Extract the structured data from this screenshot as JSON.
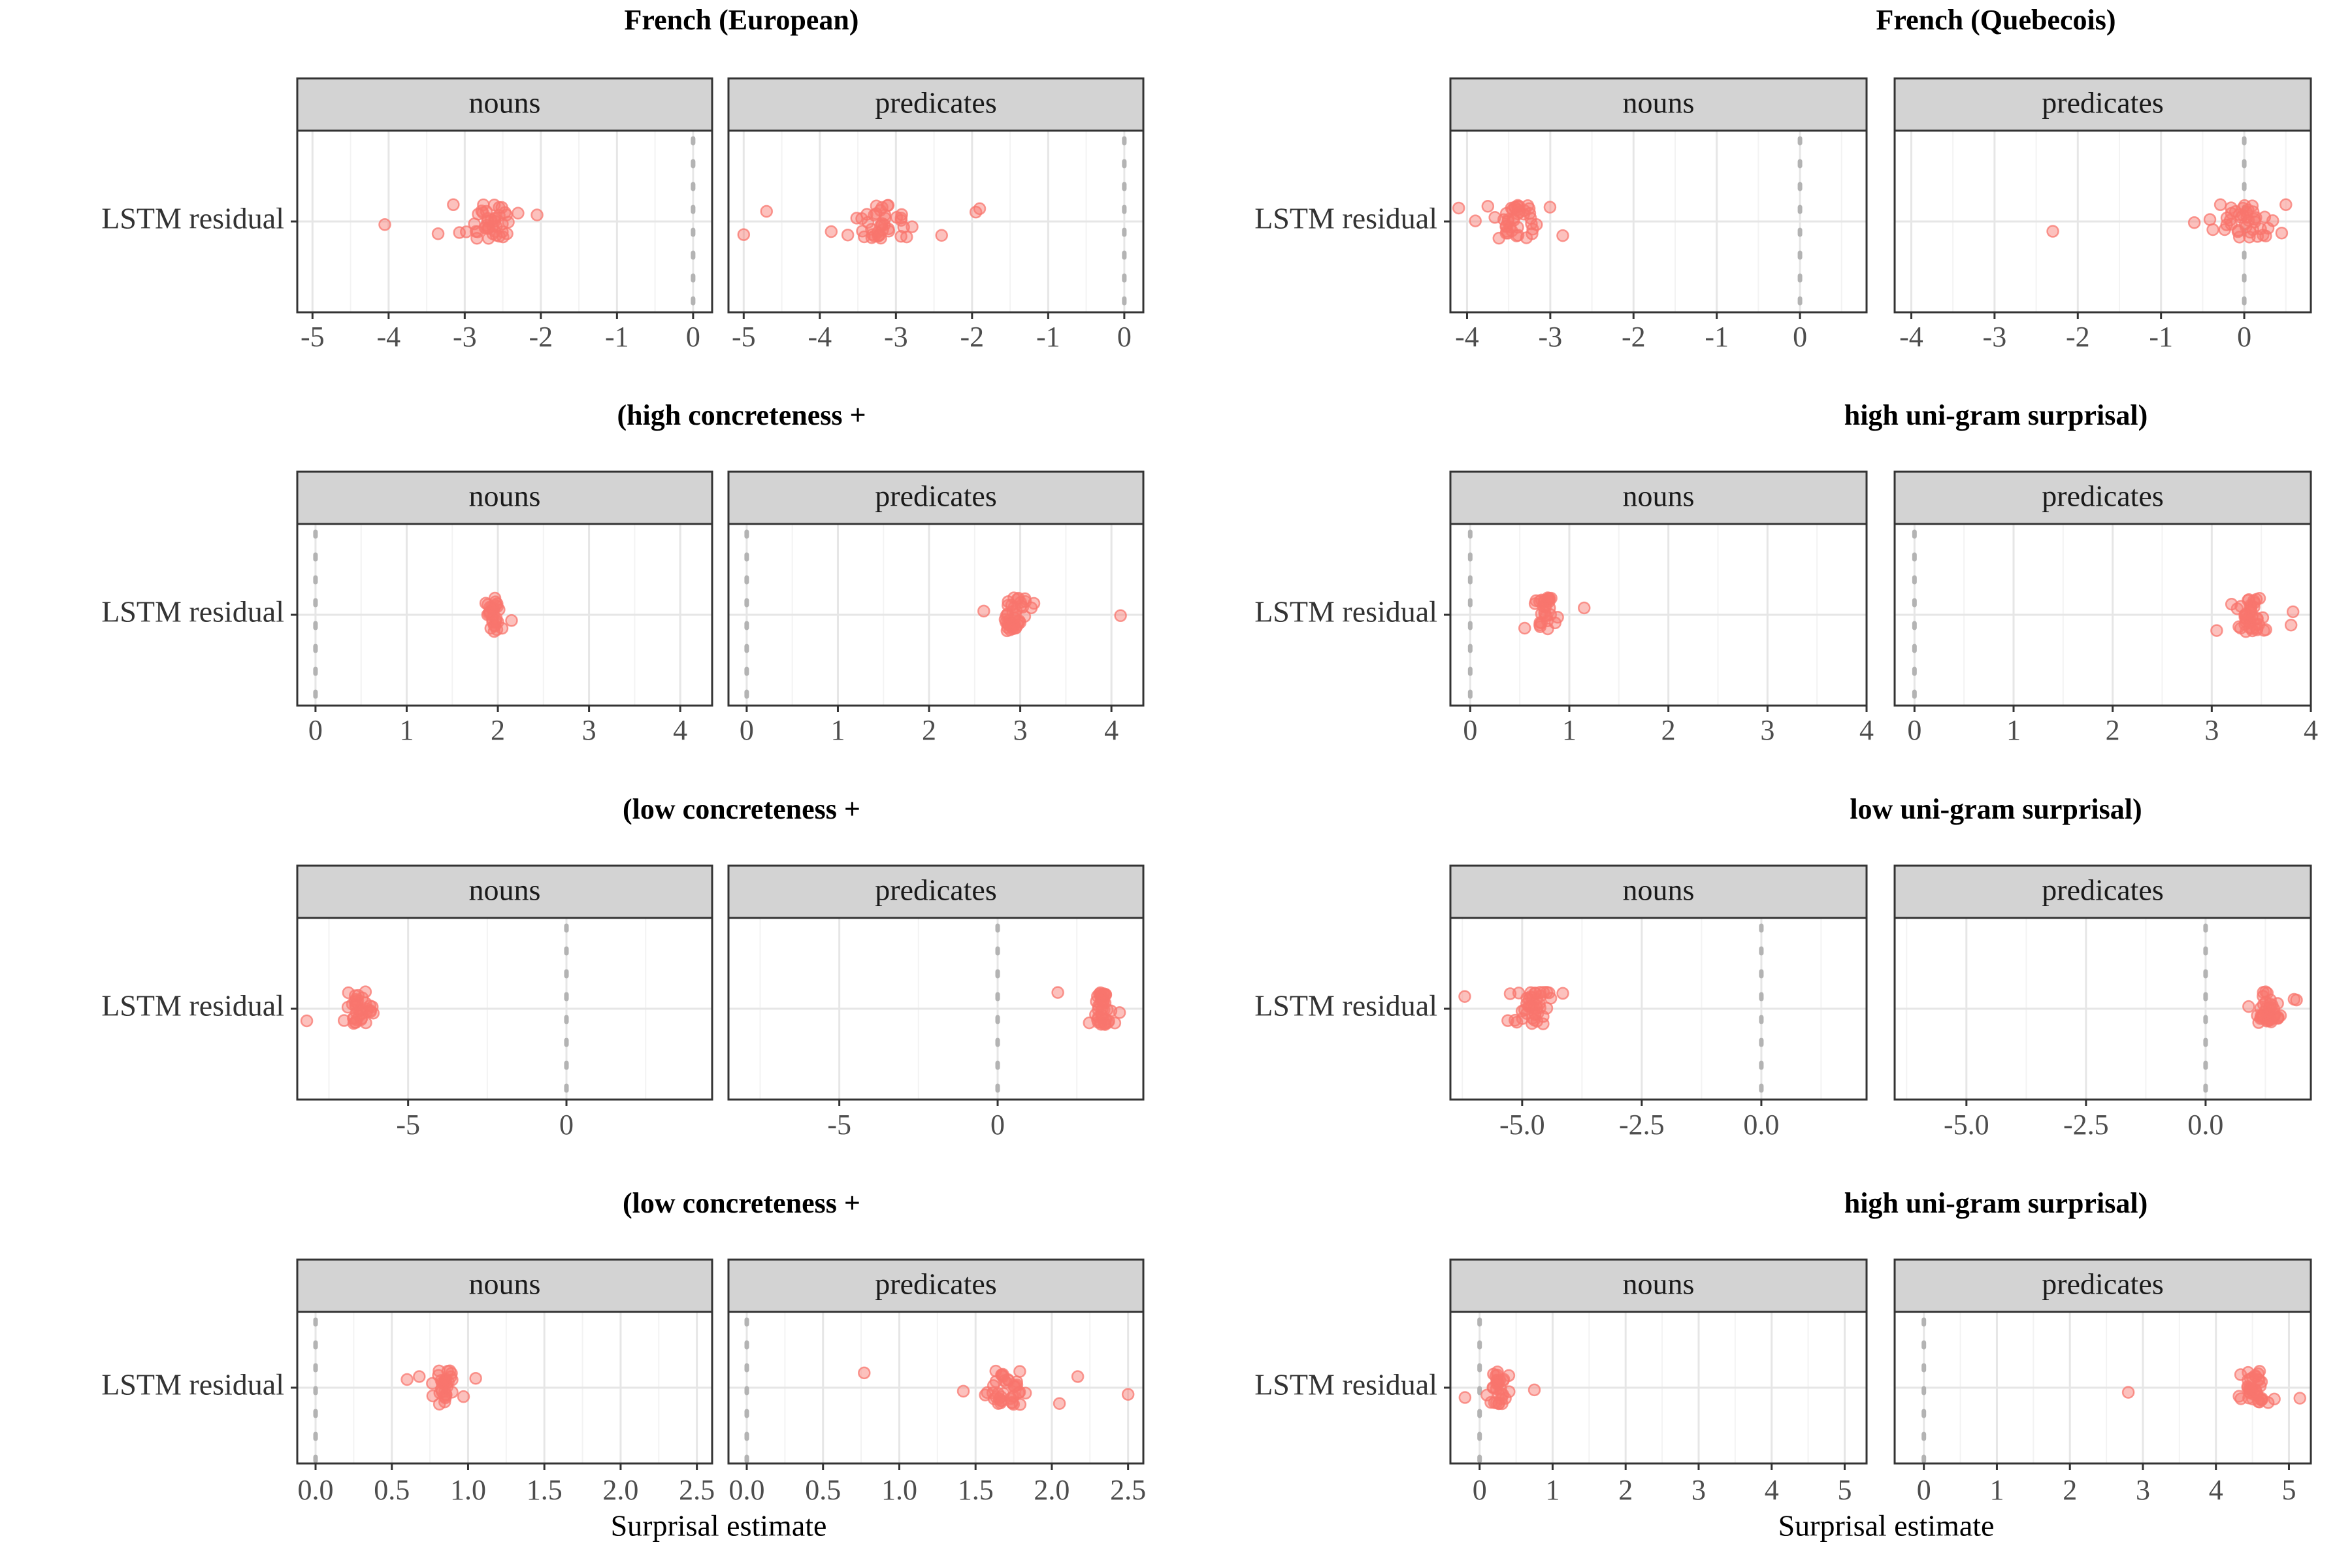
{
  "colors": {
    "point": "#F8766D",
    "strip_bg": "#D3D3D3",
    "grid_major": "#E6E6E6",
    "grid_minor": "#F3F3F3",
    "panel_border": "#333333",
    "ref_line": "#B3B3B3"
  },
  "chart_data": [
    {
      "type": "scatter",
      "title": "French (European)",
      "facets": [
        "nouns",
        "predicates"
      ],
      "y_category": "LSTM residual",
      "xlabel": "",
      "xlim": [
        -5.2,
        0.25
      ],
      "xticks": [
        -5,
        -4,
        -3,
        -2,
        -1,
        0
      ],
      "xtick_labels": [
        "-5",
        "-4",
        "-3",
        "-2",
        "-1",
        "0"
      ],
      "reference_line": 0,
      "series": [
        {
          "facet": "nouns",
          "center": -2.65,
          "spread": 0.16,
          "n": 40,
          "outliers": [
            -4.05,
            -3.35,
            -2.05,
            -3.15,
            -2.3
          ]
        },
        {
          "facet": "predicates",
          "center": -3.15,
          "spread": 0.2,
          "n": 40,
          "outliers": [
            -5.0,
            -4.7,
            -1.9,
            -1.95,
            -2.4,
            -3.85
          ]
        }
      ]
    },
    {
      "type": "scatter",
      "title": "French (Quebecois)",
      "facets": [
        "nouns",
        "predicates"
      ],
      "y_category": "LSTM residual",
      "xlabel": "",
      "xlim": [
        -4.2,
        0.8
      ],
      "xticks": [
        -4,
        -3,
        -2,
        -1,
        0
      ],
      "xtick_labels": [
        "-4",
        "-3",
        "-2",
        "-1",
        "0"
      ],
      "reference_line": 0,
      "series": [
        {
          "facet": "nouns",
          "center": -3.4,
          "spread": 0.15,
          "n": 40,
          "outliers": [
            -4.1,
            -3.9,
            -2.85,
            -3.75
          ]
        },
        {
          "facet": "predicates",
          "center": 0.0,
          "spread": 0.17,
          "n": 40,
          "outliers": [
            -2.3,
            -0.6,
            0.5,
            0.45
          ]
        }
      ]
    },
    {
      "type": "scatter",
      "title": "(high concreteness +",
      "facets": [
        "nouns",
        "predicates"
      ],
      "y_category": "LSTM residual",
      "xlabel": "",
      "xlim": [
        -0.2,
        4.35
      ],
      "xticks": [
        0,
        1,
        2,
        3,
        4
      ],
      "xtick_labels": [
        "0",
        "1",
        "2",
        "3",
        "4"
      ],
      "reference_line": 0,
      "series": [
        {
          "facet": "nouns",
          "center": 1.96,
          "spread": 0.04,
          "n": 30,
          "outliers": [
            2.15,
            1.9
          ]
        },
        {
          "facet": "predicates",
          "center": 2.92,
          "spread": 0.07,
          "n": 40,
          "outliers": [
            4.1,
            2.6,
            3.15
          ]
        }
      ]
    },
    {
      "type": "scatter",
      "title": "high uni-gram surprisal)",
      "facets": [
        "nouns",
        "predicates"
      ],
      "y_category": "LSTM residual",
      "xlabel": "",
      "xlim": [
        -0.2,
        4.0
      ],
      "xticks": [
        0,
        1,
        2,
        3,
        4
      ],
      "xtick_labels": [
        "0",
        "1",
        "2",
        "3",
        "4"
      ],
      "reference_line": 0,
      "series": [
        {
          "facet": "nouns",
          "center": 0.77,
          "spread": 0.05,
          "n": 30,
          "outliers": [
            1.15,
            0.55
          ]
        },
        {
          "facet": "predicates",
          "center": 3.4,
          "spread": 0.07,
          "n": 40,
          "outliers": [
            3.05,
            3.8,
            3.82,
            3.2
          ]
        }
      ]
    },
    {
      "type": "scatter",
      "title": "(low concreteness +",
      "facets": [
        "nouns",
        "predicates"
      ],
      "y_category": "LSTM residual",
      "xlabel": "",
      "xlim": [
        -8.5,
        4.6
      ],
      "xticks": [
        -5,
        0
      ],
      "xtick_labels": [
        "-5",
        "0"
      ],
      "reference_line": 0,
      "series": [
        {
          "facet": "nouns",
          "center": -6.5,
          "spread": 0.18,
          "n": 35,
          "outliers": [
            -8.2,
            -6.9,
            -6.1
          ]
        },
        {
          "facet": "predicates",
          "center": 3.3,
          "spread": 0.12,
          "n": 40,
          "outliers": [
            1.9,
            3.85,
            3.7
          ]
        }
      ]
    },
    {
      "type": "scatter",
      "title": "low uni-gram surprisal)",
      "facets": [
        "nouns",
        "predicates"
      ],
      "y_category": "LSTM residual",
      "xlabel": "",
      "xlim": [
        -6.5,
        2.2
      ],
      "xticks": [
        -5,
        -2.5,
        0
      ],
      "xtick_labels": [
        "-5.0",
        "-2.5",
        "0.0"
      ],
      "reference_line": 0,
      "series": [
        {
          "facet": "nouns",
          "center": -4.75,
          "spread": 0.15,
          "n": 40,
          "outliers": [
            -6.2,
            -5.3,
            -4.15,
            -5.15
          ]
        },
        {
          "facet": "predicates",
          "center": 1.3,
          "spread": 0.12,
          "n": 40,
          "outliers": [
            0.9,
            1.9,
            1.85
          ]
        }
      ]
    },
    {
      "type": "scatter",
      "title": "(low concreteness +",
      "facets": [
        "nouns",
        "predicates"
      ],
      "y_category": "LSTM residual",
      "xlabel": "Surprisal estimate",
      "xlim": [
        -0.12,
        2.6
      ],
      "xticks": [
        0,
        0.5,
        1,
        1.5,
        2,
        2.5
      ],
      "xtick_labels": [
        "0.0",
        "0.5",
        "1.0",
        "1.5",
        "2.0",
        "2.5"
      ],
      "reference_line": 0,
      "series": [
        {
          "facet": "nouns",
          "center": 0.85,
          "spread": 0.04,
          "n": 30,
          "outliers": [
            0.6,
            1.05,
            0.68,
            0.97
          ]
        },
        {
          "facet": "predicates",
          "center": 1.68,
          "spread": 0.07,
          "n": 40,
          "outliers": [
            0.77,
            2.5,
            2.17,
            1.42,
            2.05
          ]
        }
      ]
    },
    {
      "type": "scatter",
      "title": "high uni-gram surprisal)",
      "facets": [
        "nouns",
        "predicates"
      ],
      "y_category": "LSTM residual",
      "xlabel": "Surprisal estimate",
      "xlim": [
        -0.4,
        5.3
      ],
      "xticks": [
        0,
        1,
        2,
        3,
        4,
        5
      ],
      "xtick_labels": [
        "0",
        "1",
        "2",
        "3",
        "4",
        "5"
      ],
      "reference_line": 0,
      "series": [
        {
          "facet": "nouns",
          "center": 0.25,
          "spread": 0.05,
          "n": 30,
          "outliers": [
            -0.2,
            0.75,
            0.4
          ]
        },
        {
          "facet": "predicates",
          "center": 4.52,
          "spread": 0.08,
          "n": 40,
          "outliers": [
            2.8,
            5.15,
            4.8
          ]
        }
      ]
    }
  ]
}
